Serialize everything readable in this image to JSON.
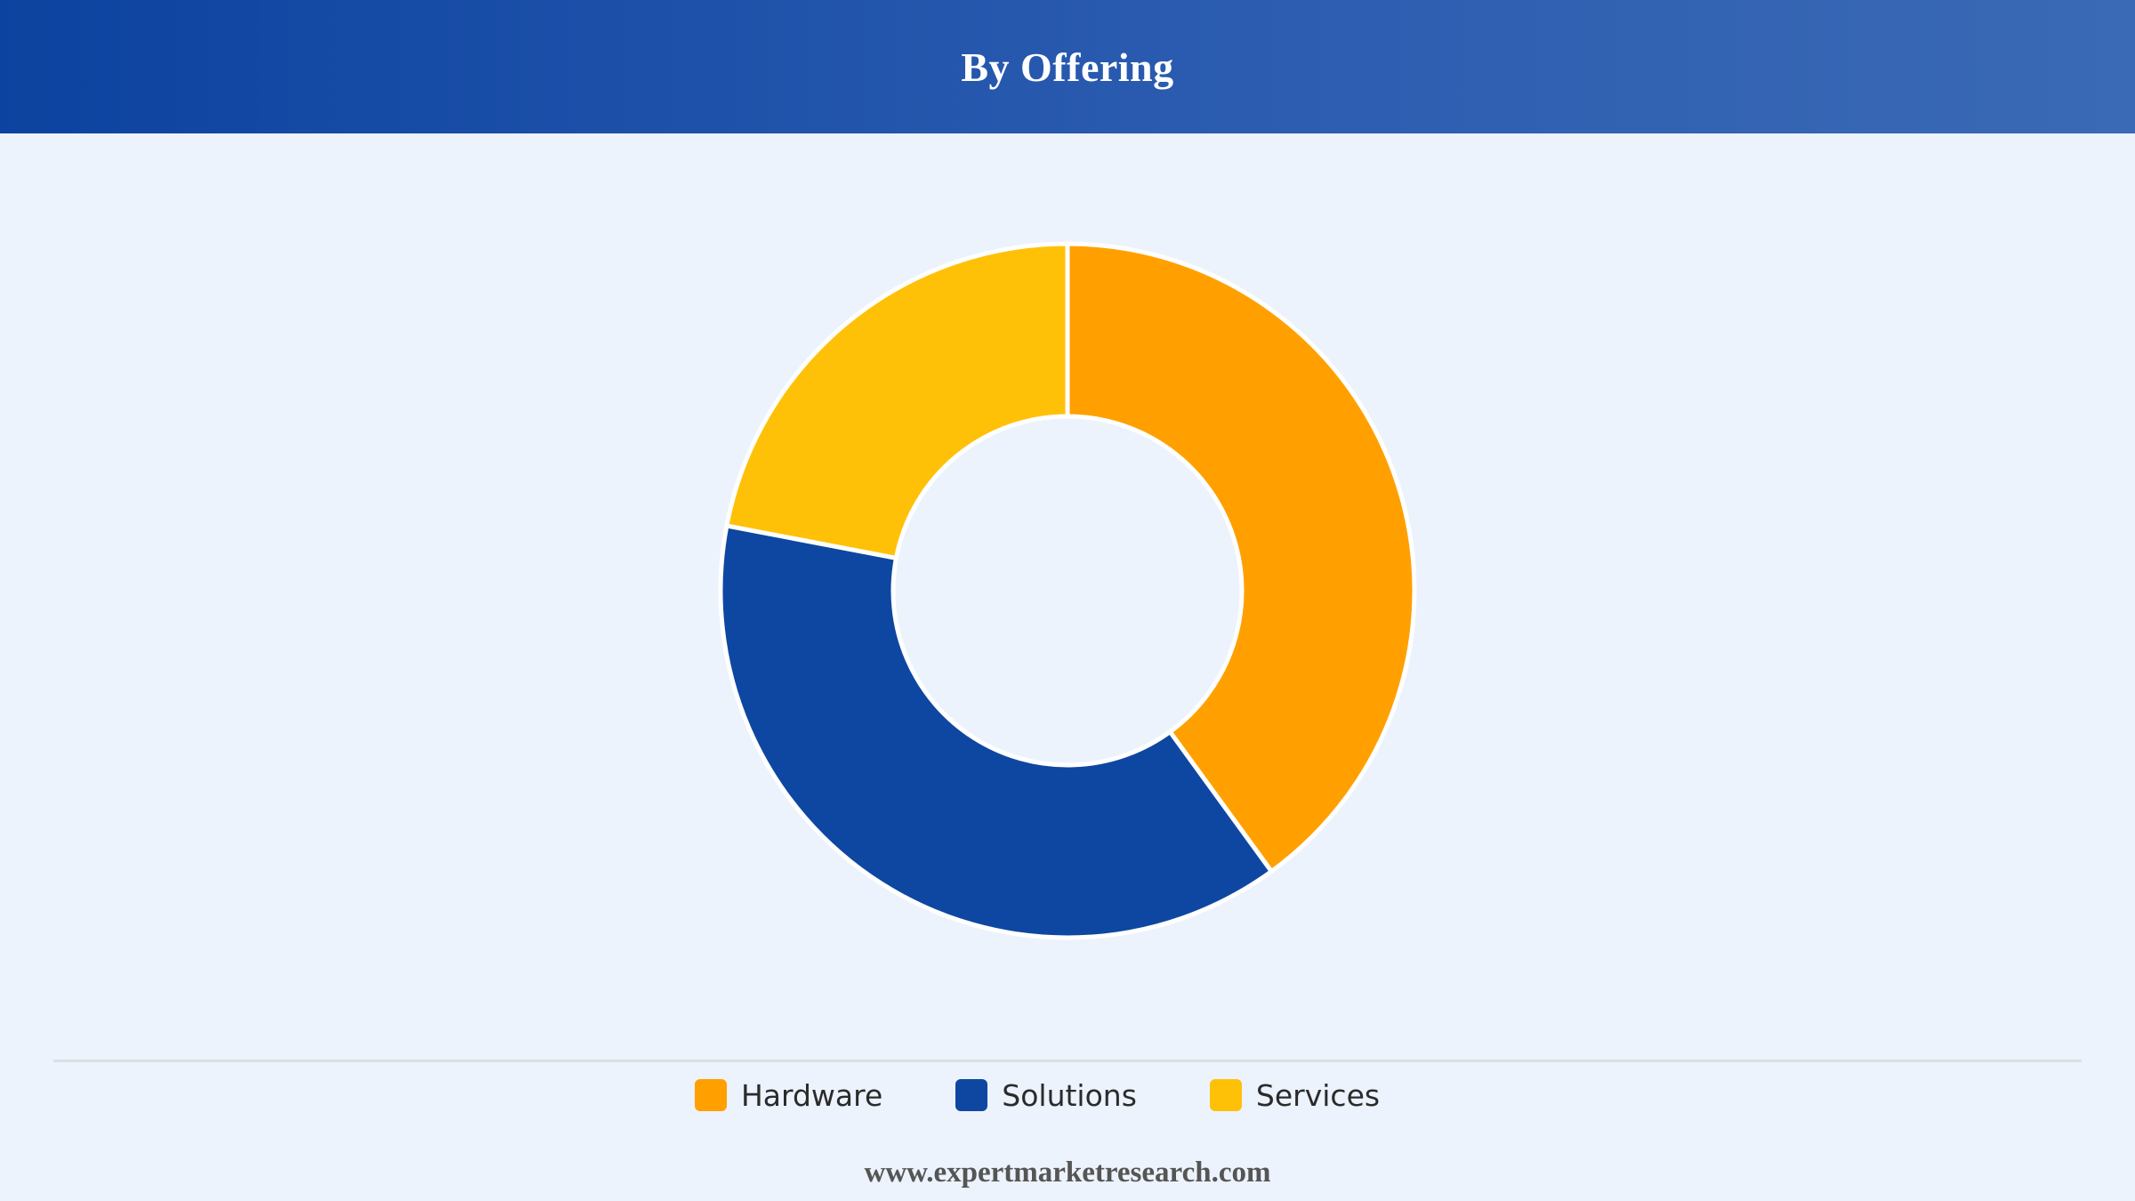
{
  "header": {
    "title": "By Offering"
  },
  "chart_data": {
    "type": "pie",
    "title": "By Offering",
    "donut": true,
    "categories": [
      "Hardware",
      "Solutions",
      "Services"
    ],
    "values": [
      40,
      38,
      22
    ],
    "colors": [
      "#ffa000",
      "#0d47a1",
      "#ffc107"
    ],
    "legend_position": "bottom"
  },
  "footer": {
    "url": "www.expertmarketresearch.com"
  }
}
